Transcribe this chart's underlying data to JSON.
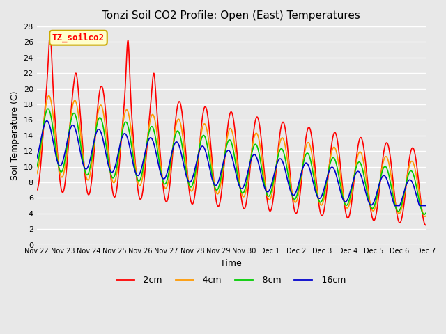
{
  "title": "Tonzi Soil CO2 Profile: Open (East) Temperatures",
  "xlabel": "Time",
  "ylabel": "Soil Temperature (C)",
  "ylim": [
    0,
    28
  ],
  "yticks": [
    0,
    2,
    4,
    6,
    8,
    10,
    12,
    14,
    16,
    18,
    20,
    22,
    24,
    26,
    28
  ],
  "bg_color": "#e8e8e8",
  "plot_bg_color": "#e8e8e8",
  "grid_color": "#ffffff",
  "series_colors": [
    "#ff0000",
    "#ff9900",
    "#00cc00",
    "#0000cc"
  ],
  "series_labels": [
    "-2cm",
    "-4cm",
    "-8cm",
    "-16cm"
  ],
  "legend_label": "TZ_soilco2",
  "legend_bg": "#ffffcc",
  "legend_border": "#ccaa00",
  "x_tick_labels": [
    "Nov 22",
    "Nov 23",
    "Nov 24",
    "Nov 25",
    "Nov 26",
    "Nov 27",
    "Nov 28",
    "Nov 29",
    "Nov 30",
    "Dec 1",
    "Dec 2",
    "Dec 3",
    "Dec 4",
    "Dec 5",
    "Dec 6",
    "Dec 7"
  ],
  "num_points": 960
}
